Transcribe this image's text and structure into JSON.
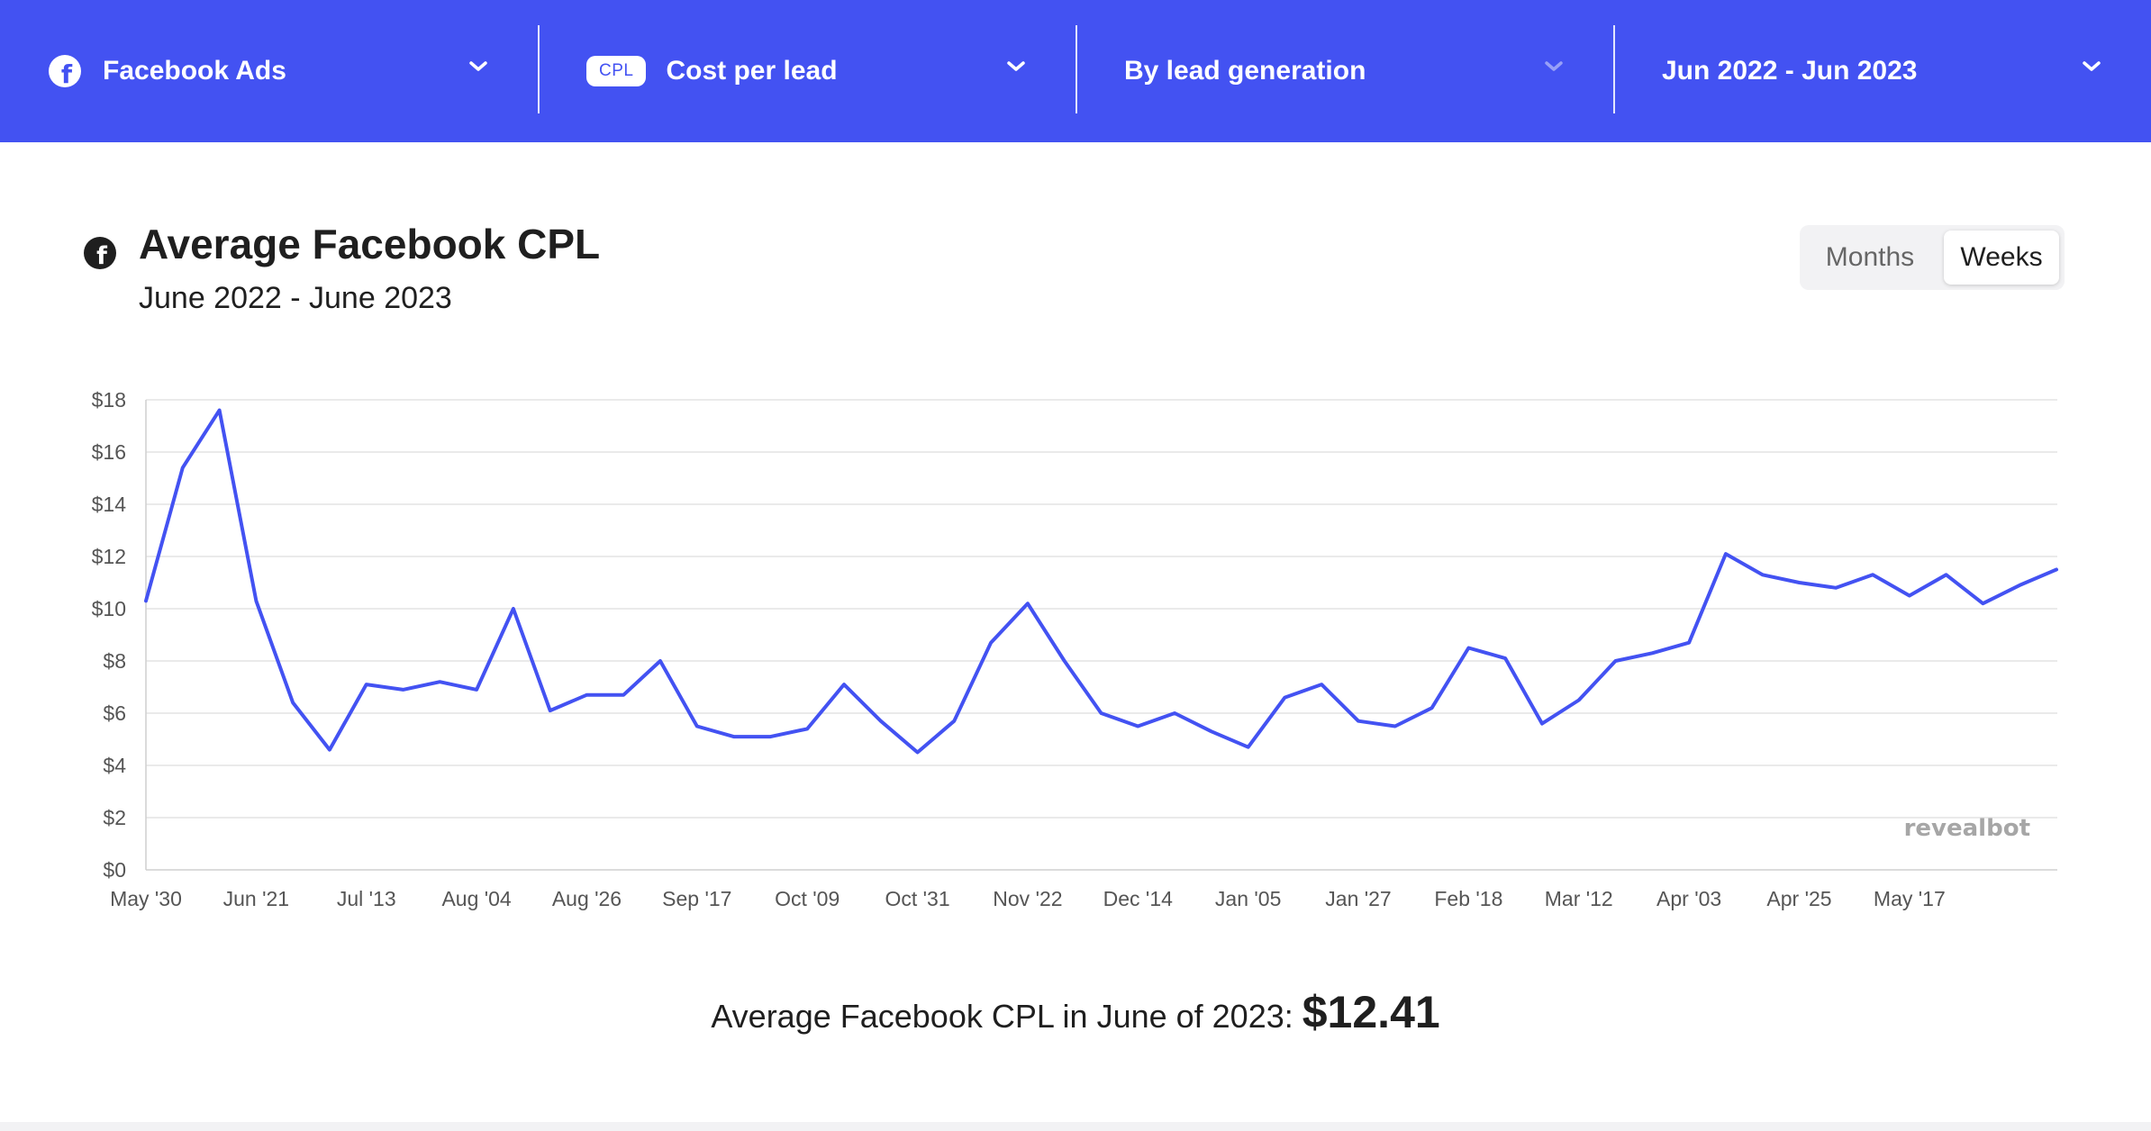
{
  "filters": {
    "platform": {
      "label": "Facebook Ads",
      "icon": "facebook-icon"
    },
    "metric": {
      "badge": "CPL",
      "label": "Cost per lead"
    },
    "grouping": {
      "label": "By lead generation"
    },
    "date_range": {
      "label": "Jun 2022 - Jun 2023"
    }
  },
  "header": {
    "title": "Average Facebook CPL",
    "subtitle": "June 2022 - June 2023",
    "icon": "facebook-icon"
  },
  "toggle": {
    "options": [
      "Months",
      "Weeks"
    ],
    "selected": "Weeks"
  },
  "watermark": "revealbot",
  "summary": {
    "label": "Average Facebook CPL in June of 2023:",
    "value": "$12.41"
  },
  "colors": {
    "accent": "#4352f2",
    "line": "#4352f2",
    "grid": "#e4e4e4"
  },
  "chart_data": {
    "type": "line",
    "title": "Average Facebook CPL",
    "subtitle": "June 2022 - June 2023",
    "xlabel": "",
    "ylabel": "",
    "ylim": [
      0,
      18
    ],
    "yticks": [
      "$0",
      "$2",
      "$4",
      "$6",
      "$8",
      "$10",
      "$12",
      "$14",
      "$16",
      "$18"
    ],
    "ytick_values": [
      0,
      2,
      4,
      6,
      8,
      10,
      12,
      14,
      16,
      18
    ],
    "xtick_labels": [
      "May '30",
      "Jun '21",
      "Jul '13",
      "Aug '04",
      "Aug '26",
      "Sep '17",
      "Oct '09",
      "Oct '31",
      "Nov '22",
      "Dec '14",
      "Jan '05",
      "Jan '27",
      "Feb '18",
      "Mar '12",
      "Apr '03",
      "Apr '25",
      "May '17"
    ],
    "xtick_every": 3,
    "grid": true,
    "series": [
      {
        "values": [
          10.3,
          15.4,
          17.6,
          10.3,
          6.4,
          4.6,
          7.1,
          6.9,
          7.2,
          6.9,
          10.0,
          6.1,
          6.7,
          6.7,
          8.0,
          5.5,
          5.1,
          5.1,
          5.4,
          7.1,
          5.7,
          4.5,
          5.7,
          8.7,
          10.2,
          8.0,
          6.0,
          5.5,
          6.0,
          5.3,
          4.7,
          6.6,
          7.1,
          5.7,
          5.5,
          6.2,
          8.5,
          8.1,
          5.6,
          6.5,
          8.0,
          8.3,
          8.7,
          12.1,
          11.3,
          11.0,
          10.8,
          11.3,
          10.5,
          11.3,
          10.2,
          10.9,
          11.5
        ]
      }
    ]
  }
}
